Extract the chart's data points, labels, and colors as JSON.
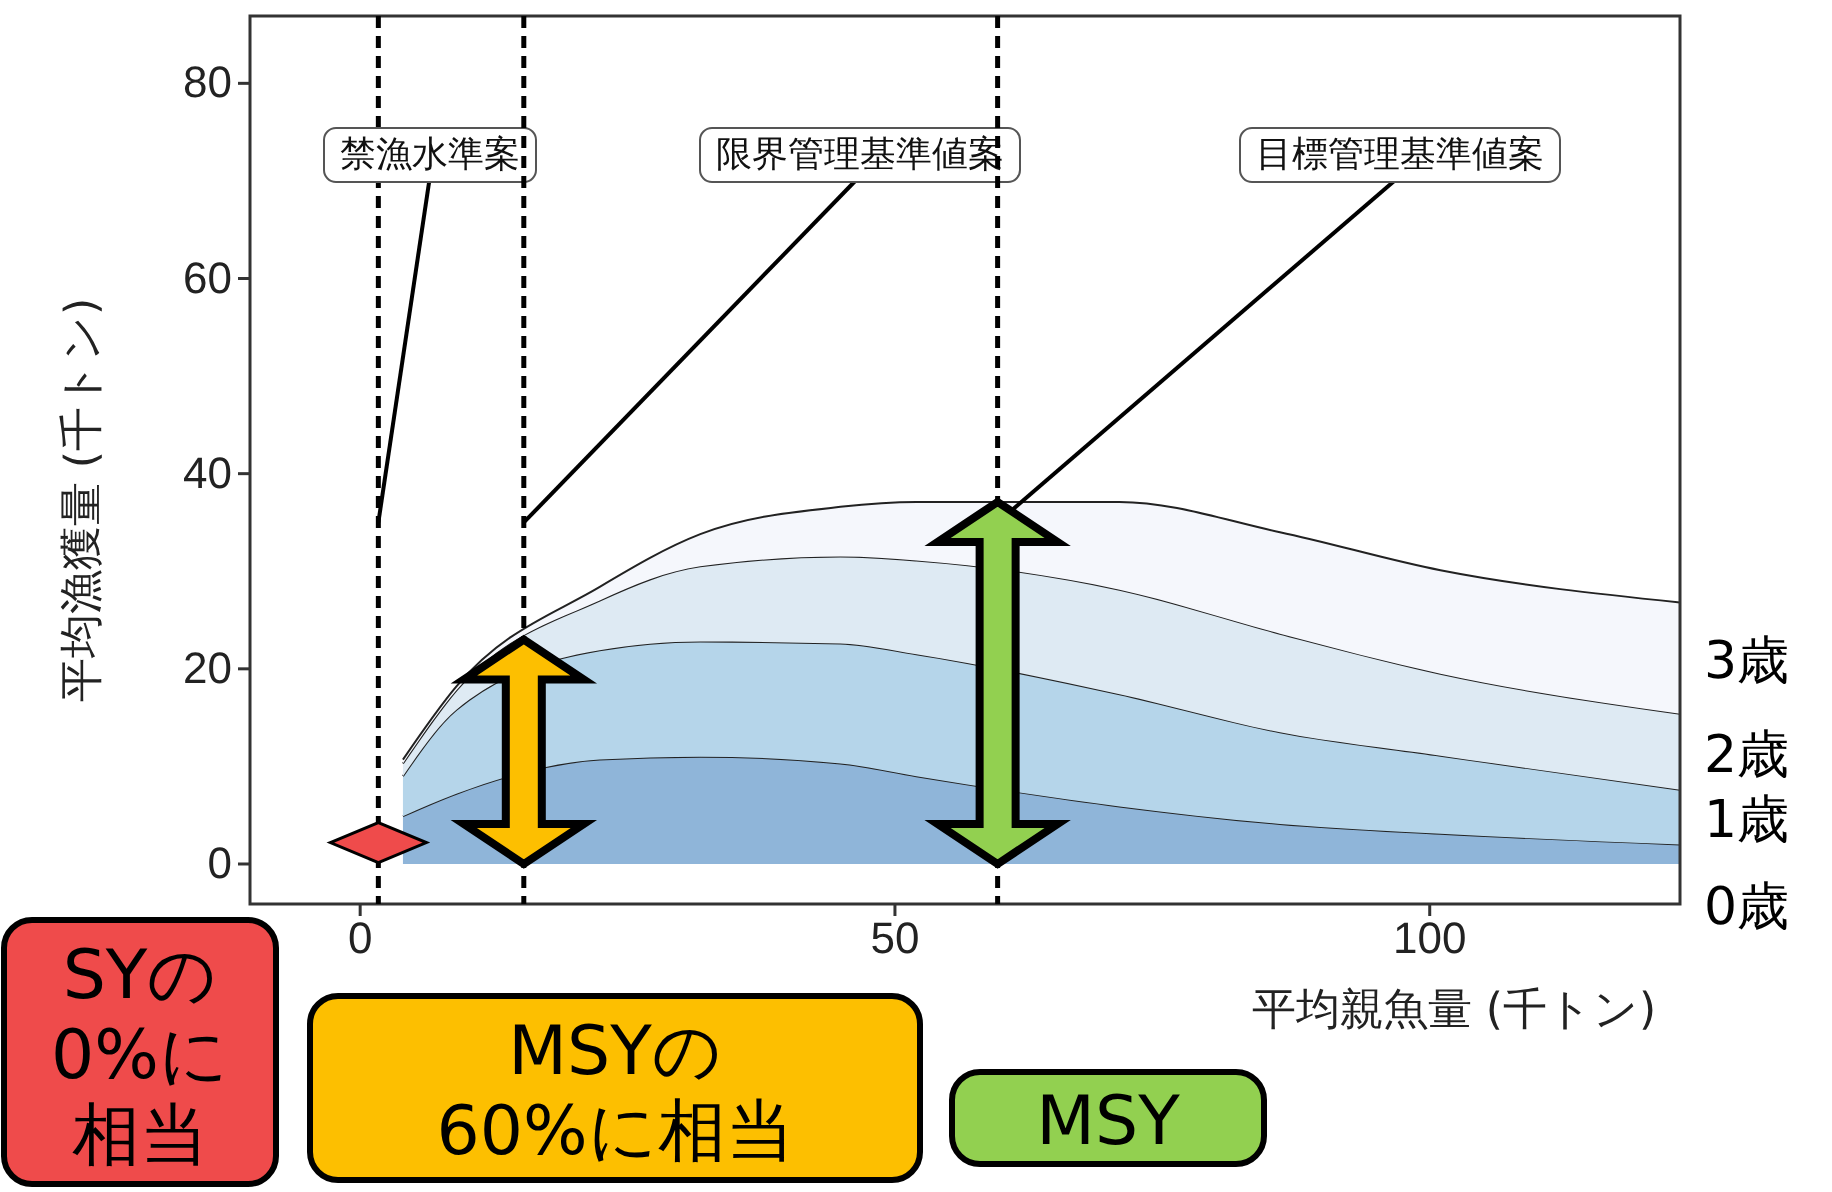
{
  "chart_data": {
    "type": "area",
    "stacked": true,
    "xlabel": "平均親魚量 (千トン)",
    "ylabel": "平均漁獲量 (千トン)",
    "x": [
      4,
      9,
      22.4,
      31.8,
      44.9,
      52,
      71,
      86,
      101,
      123.4
    ],
    "series": [
      {
        "name": "0歳",
        "color": "#8fb5d9",
        "values": [
          4.9,
          7.2,
          10.7,
          11.0,
          10.3,
          9.0,
          5.9,
          4.1,
          3.1,
          2.0
        ]
      },
      {
        "name": "1歳",
        "color": "#b5d5ea",
        "values": [
          4.1,
          8.6,
          11.2,
          11.8,
          12.3,
          12.5,
          11.5,
          9.4,
          8.0,
          5.6
        ]
      },
      {
        "name": "2歳",
        "color": "#deeaf3",
        "values": [
          1.3,
          2.0,
          5.1,
          7.7,
          8.9,
          9.6,
          10.7,
          10.1,
          8.4,
          7.8
        ]
      },
      {
        "name": "3歳",
        "color": "#f5f7fc",
        "values": [
          0.4,
          0.4,
          1.4,
          3.3,
          5.1,
          6.0,
          9.0,
          10.4,
          10.6,
          11.4
        ]
      }
    ],
    "xlim": [
      -10.3,
      123.4
    ],
    "ylim": [
      -4.1,
      86.9
    ],
    "xticks": [
      0,
      50,
      100
    ],
    "yticks": [
      0,
      20,
      40,
      60,
      80
    ],
    "grid": false,
    "ref_lines": [
      {
        "axis": "x",
        "value": 1.7,
        "label": "禁漁水準案",
        "line_style": "dashed",
        "color": "#000000"
      },
      {
        "axis": "x",
        "value": 15.3,
        "label": "限界管理基準値案",
        "line_style": "dashed",
        "color": "#000000"
      },
      {
        "axis": "x",
        "value": 59.6,
        "label": "目標管理基準値案",
        "line_style": "dashed",
        "color": "#000000"
      }
    ],
    "annotations": [
      "SYの0%に相当",
      "MSYの60%に相当",
      "MSY"
    ]
  }
}
